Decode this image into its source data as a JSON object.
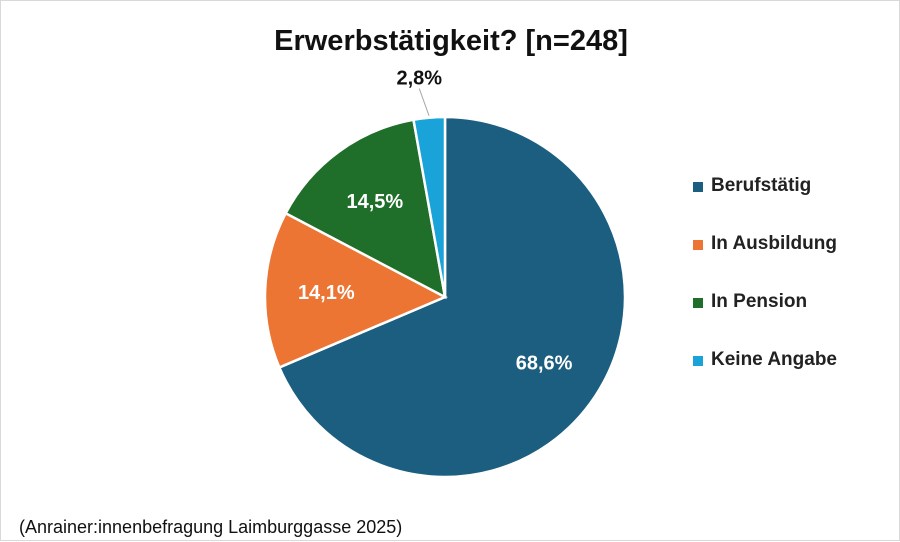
{
  "chart_data": {
    "type": "pie",
    "title": "Erwerbstätigkeit? [n=248]",
    "categories": [
      "Berufstätig",
      "In Ausbildung",
      "In Pension",
      "Keine Angabe"
    ],
    "values": [
      68.6,
      14.1,
      14.5,
      2.8
    ],
    "data_labels": [
      "68,6%",
      "14,1%",
      "14,5%",
      "2,8%"
    ],
    "colors": [
      "#1b5e7f",
      "#ec7533",
      "#1f6e2a",
      "#1aa3d9"
    ],
    "legend_position": "right"
  },
  "footer": {
    "source": "(Anrainer:innenbefragung Laimburggasse 2025)"
  }
}
